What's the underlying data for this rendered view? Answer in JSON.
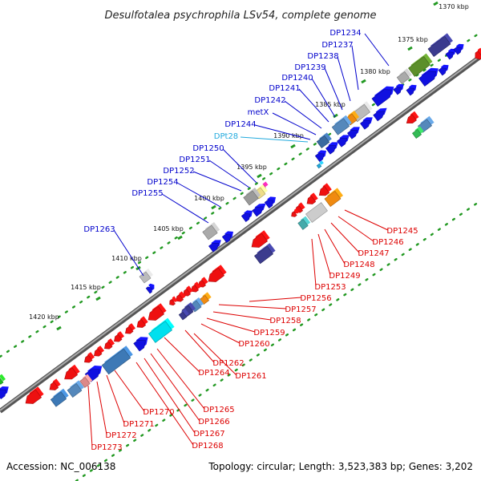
{
  "title": "Desulfotalea psychrophila LSv54, complete genome",
  "footer": {
    "accession": "Accession: NC_006138",
    "summary": "Topology: circular; Length: 3,523,383 bp; Genes: 3,202"
  },
  "colors": {
    "backbone": "#888888",
    "forward_gene": "#1010e0",
    "reverse_gene": "#ee1010",
    "tick": "#229922",
    "forward_label": "#0000cc",
    "reverse_label": "#dd0000",
    "trna_label": "#22aadd"
  },
  "ticks": [
    {
      "label": "1370 kbp"
    },
    {
      "label": "1375 kbp"
    },
    {
      "label": "1380 kbp"
    },
    {
      "label": "1385 kbp"
    },
    {
      "label": "1390 kbp"
    },
    {
      "label": "1395 kbp"
    },
    {
      "label": "1400 kbp"
    },
    {
      "label": "1405 kbp"
    },
    {
      "label": "1410 kbp"
    },
    {
      "label": "1415 kbp"
    },
    {
      "label": "1420 kbp"
    }
  ],
  "top_labels": [
    {
      "label": "DP1234",
      "type": "forward"
    },
    {
      "label": "DP1237",
      "type": "forward"
    },
    {
      "label": "DP1238",
      "type": "forward"
    },
    {
      "label": "DP1239",
      "type": "forward"
    },
    {
      "label": "DP1240",
      "type": "forward"
    },
    {
      "label": "DP1241",
      "type": "forward"
    },
    {
      "label": "DP1242",
      "type": "forward"
    },
    {
      "label": "metX",
      "type": "forward"
    },
    {
      "label": "DP1244",
      "type": "forward"
    },
    {
      "label": "DPt28",
      "type": "trna"
    },
    {
      "label": "DP1250",
      "type": "forward"
    },
    {
      "label": "DP1251",
      "type": "forward"
    },
    {
      "label": "DP1252",
      "type": "forward"
    },
    {
      "label": "DP1254",
      "type": "forward"
    },
    {
      "label": "DP1255",
      "type": "forward"
    },
    {
      "label": "DP1263",
      "type": "forward"
    }
  ],
  "bottom_labels": [
    {
      "label": "DP1245"
    },
    {
      "label": "DP1246"
    },
    {
      "label": "DP1247"
    },
    {
      "label": "DP1248"
    },
    {
      "label": "DP1249"
    },
    {
      "label": "DP1253"
    },
    {
      "label": "DP1256"
    },
    {
      "label": "DP1257"
    },
    {
      "label": "DP1258"
    },
    {
      "label": "DP1259"
    },
    {
      "label": "DP1260"
    },
    {
      "label": "DP1262"
    },
    {
      "label": "DP1264"
    },
    {
      "label": "DP1261"
    },
    {
      "label": "DP1265"
    },
    {
      "label": "DP1266"
    },
    {
      "label": "DP1270"
    },
    {
      "label": "DP1267"
    },
    {
      "label": "DP1271"
    },
    {
      "label": "DP1268"
    },
    {
      "label": "DP1272"
    },
    {
      "label": "DP1273"
    }
  ]
}
